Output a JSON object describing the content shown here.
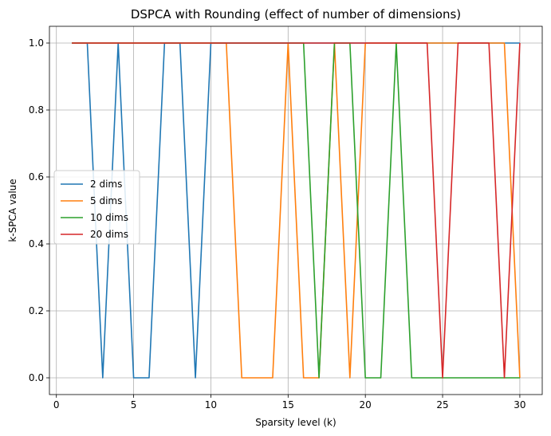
{
  "chart_data": {
    "type": "line",
    "title": "DSPCA with Rounding (effect of number of dimensions)",
    "xlabel": "Sparsity level (k)",
    "ylabel": "k-SPCA value",
    "xlim": [
      -0.45,
      31.45
    ],
    "ylim": [
      -0.05,
      1.05
    ],
    "xticks": [
      0,
      5,
      10,
      15,
      20,
      25,
      30
    ],
    "yticks": [
      0.0,
      0.2,
      0.4,
      0.6,
      0.8,
      1.0
    ],
    "xtick_labels": [
      "0",
      "5",
      "10",
      "15",
      "20",
      "25",
      "30"
    ],
    "ytick_labels": [
      "0.0",
      "0.2",
      "0.4",
      "0.6",
      "0.8",
      "1.0"
    ],
    "grid": true,
    "legend_position": "center-left",
    "x": [
      1,
      2,
      3,
      4,
      5,
      6,
      7,
      8,
      9,
      10,
      11,
      12,
      13,
      14,
      15,
      16,
      17,
      18,
      19,
      20,
      21,
      22,
      23,
      24,
      25,
      26,
      27,
      28,
      29,
      30
    ],
    "series": [
      {
        "name": "2 dims",
        "color": "#1f77b4",
        "values": [
          1,
          1,
          0,
          1,
          0,
          0,
          1,
          1,
          0,
          1,
          1,
          1,
          1,
          1,
          1,
          1,
          1,
          1,
          1,
          1,
          1,
          1,
          1,
          1,
          1,
          1,
          1,
          1,
          1,
          1
        ]
      },
      {
        "name": "5 dims",
        "color": "#ff7f0e",
        "values": [
          1,
          1,
          1,
          1,
          1,
          1,
          1,
          1,
          1,
          1,
          1,
          0,
          0,
          0,
          1,
          0,
          0,
          1,
          0,
          1,
          1,
          1,
          1,
          1,
          1,
          1,
          1,
          1,
          1,
          0
        ]
      },
      {
        "name": "10 dims",
        "color": "#2ca02c",
        "values": [
          1,
          1,
          1,
          1,
          1,
          1,
          1,
          1,
          1,
          1,
          1,
          1,
          1,
          1,
          1,
          1,
          0,
          1,
          1,
          0,
          0,
          1,
          0,
          0,
          0,
          0,
          0,
          0,
          0,
          0
        ]
      },
      {
        "name": "20 dims",
        "color": "#d62728",
        "values": [
          1,
          1,
          1,
          1,
          1,
          1,
          1,
          1,
          1,
          1,
          1,
          1,
          1,
          1,
          1,
          1,
          1,
          1,
          1,
          1,
          1,
          1,
          1,
          1,
          0,
          1,
          1,
          1,
          0,
          1
        ]
      }
    ]
  }
}
